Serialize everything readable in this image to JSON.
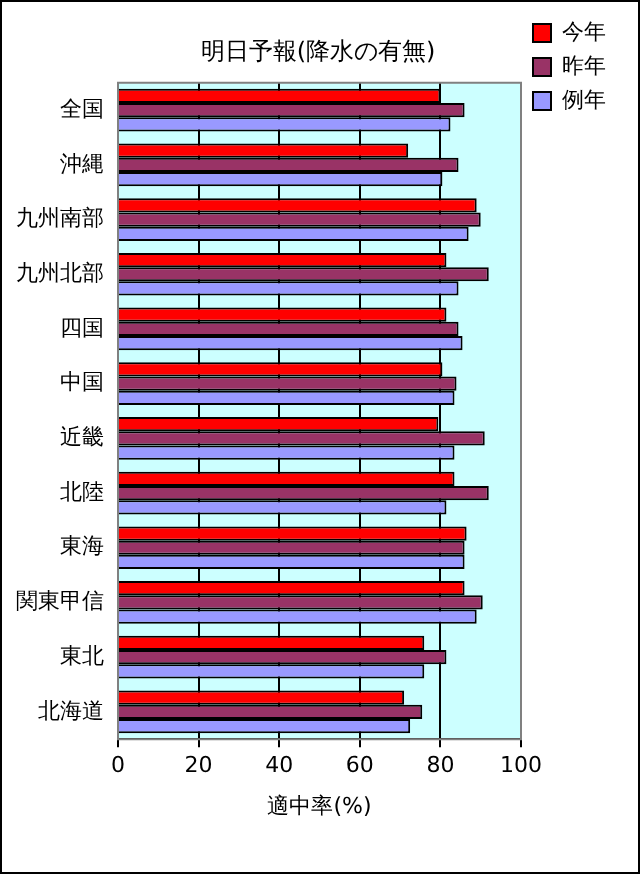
{
  "chart_data": {
    "type": "bar",
    "orientation": "horizontal",
    "title": "明日予報(降水の有無)",
    "xlabel": "適中率(%)",
    "categories": [
      "全国",
      "沖縄",
      "九州南部",
      "九州北部",
      "四国",
      "中国",
      "近畿",
      "北陸",
      "東海",
      "関東甲信",
      "東北",
      "北海道"
    ],
    "series": [
      {
        "name": "今年",
        "color": "#ff0000",
        "values": [
          80,
          72,
          89,
          81.5,
          81.5,
          80.5,
          79.5,
          83.5,
          86.5,
          86,
          76,
          71
        ]
      },
      {
        "name": "昨年",
        "color": "#993366",
        "values": [
          86,
          84.5,
          90,
          92,
          84.5,
          84,
          91,
          92,
          86,
          90.5,
          81.5,
          75.5
        ]
      },
      {
        "name": "例年",
        "color": "#9999ff",
        "values": [
          82.5,
          80.5,
          87,
          84.5,
          85.5,
          83.5,
          83.5,
          81.5,
          86,
          89,
          76,
          72.5
        ]
      }
    ],
    "xlim": [
      0,
      100
    ],
    "xticks": [
      0,
      20,
      40,
      60,
      80,
      100
    ],
    "grid": "x",
    "legend": "top right"
  }
}
